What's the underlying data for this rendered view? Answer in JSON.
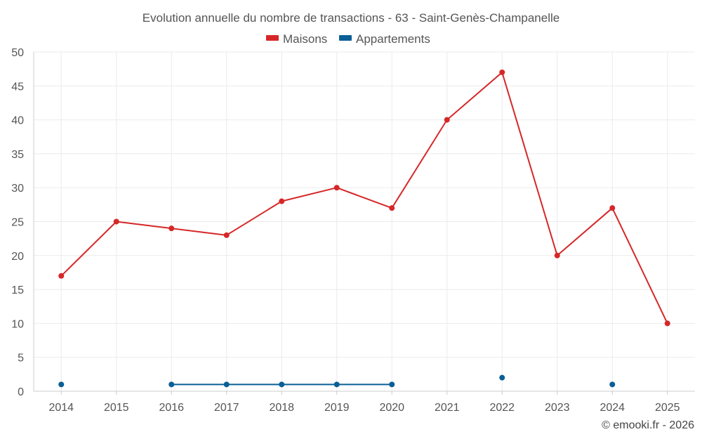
{
  "chart_data": {
    "type": "line",
    "title": "Evolution annuelle du nombre de transactions - 63 - Saint-Genès-Champanelle",
    "categories": [
      "2014",
      "2015",
      "2016",
      "2017",
      "2018",
      "2019",
      "2020",
      "2021",
      "2022",
      "2023",
      "2024",
      "2025"
    ],
    "yticks": [
      "0",
      "5",
      "10",
      "15",
      "20",
      "25",
      "30",
      "35",
      "40",
      "45",
      "50"
    ],
    "ylim": [
      0,
      50
    ],
    "xlabel": "",
    "ylabel": "",
    "grid": true,
    "legend_position": "top-center",
    "series": [
      {
        "name": "Maisons",
        "color": "#d62728",
        "values": [
          17,
          25,
          24,
          23,
          28,
          30,
          27,
          40,
          47,
          20,
          27,
          10
        ]
      },
      {
        "name": "Appartements",
        "color": "#0a5f96",
        "values": [
          1,
          null,
          1,
          1,
          1,
          1,
          1,
          null,
          2,
          null,
          1,
          null
        ]
      }
    ]
  },
  "footer": {
    "credit": "© emooki.fr - 2026"
  }
}
